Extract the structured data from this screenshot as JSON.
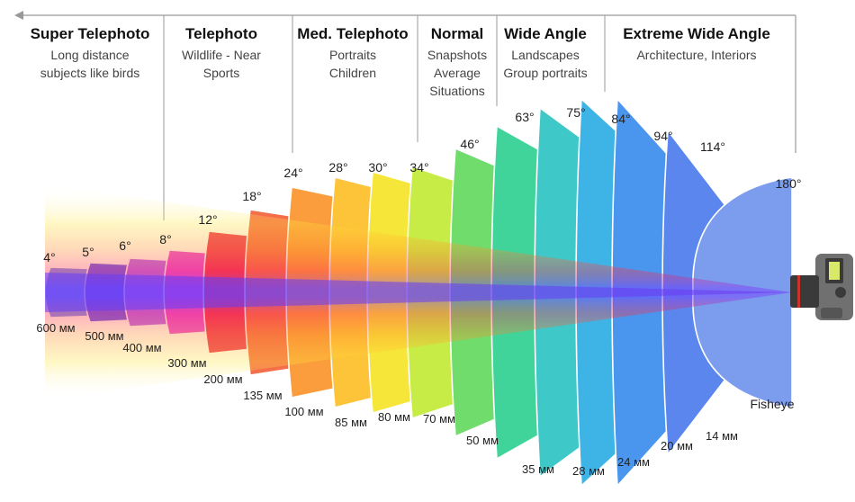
{
  "categories": [
    {
      "title": "Super Telephoto",
      "lines": [
        "Long distance",
        "subjects like birds"
      ]
    },
    {
      "title": "Telephoto",
      "lines": [
        "Wildlife - Near",
        "Sports"
      ]
    },
    {
      "title": "Med. Telephoto",
      "lines": [
        "Portraits",
        "Children"
      ]
    },
    {
      "title": "Normal",
      "lines": [
        "Snapshots",
        "Average",
        "Situations"
      ]
    },
    {
      "title": "Wide Angle",
      "lines": [
        "Landscapes",
        "Group portraits"
      ]
    },
    {
      "title": "Extreme Wide Angle",
      "lines": [
        "Architecture, Interiors"
      ]
    }
  ],
  "lenses": [
    {
      "angle": "4°",
      "focal": "600 мм",
      "color": "#7e9af0"
    },
    {
      "angle": "5°",
      "focal": "500 мм",
      "color": "#6c5ef0"
    },
    {
      "angle": "6°",
      "focal": "400 мм",
      "color": "#b86cf0"
    },
    {
      "angle": "8°",
      "focal": "300 мм",
      "color": "#e84fd8"
    },
    {
      "angle": "12°",
      "focal": "200 мм",
      "color": "#ee3a5a"
    },
    {
      "angle": "18°",
      "focal": "135 мм",
      "color": "#f56e4a"
    },
    {
      "angle": "24°",
      "focal": "100 мм",
      "color": "#fb9d3c"
    },
    {
      "angle": "28°",
      "focal": "85 мм",
      "color": "#fdc43a"
    },
    {
      "angle": "30°",
      "focal": "80 мм",
      "color": "#f7e63a"
    },
    {
      "angle": "34°",
      "focal": "70 мм",
      "color": "#c8ec46"
    },
    {
      "angle": "46°",
      "focal": "50 мм",
      "color": "#6fdc6c"
    },
    {
      "angle": "63°",
      "focal": "35 мм",
      "color": "#40d49a"
    },
    {
      "angle": "75°",
      "focal": "28 мм",
      "color": "#3ec8c8"
    },
    {
      "angle": "84°",
      "focal": "24 мм",
      "color": "#3eb4e6"
    },
    {
      "angle": "94°",
      "focal": "20 мм",
      "color": "#4a96ee"
    },
    {
      "angle": "114°",
      "focal": "14 мм",
      "color": "#5a86ee"
    },
    {
      "angle": "180°",
      "focal": "Fisheye",
      "color": "#7c9cee"
    }
  ],
  "icons": {
    "camera": "camera-icon",
    "arrow": "left-arrow-icon"
  }
}
